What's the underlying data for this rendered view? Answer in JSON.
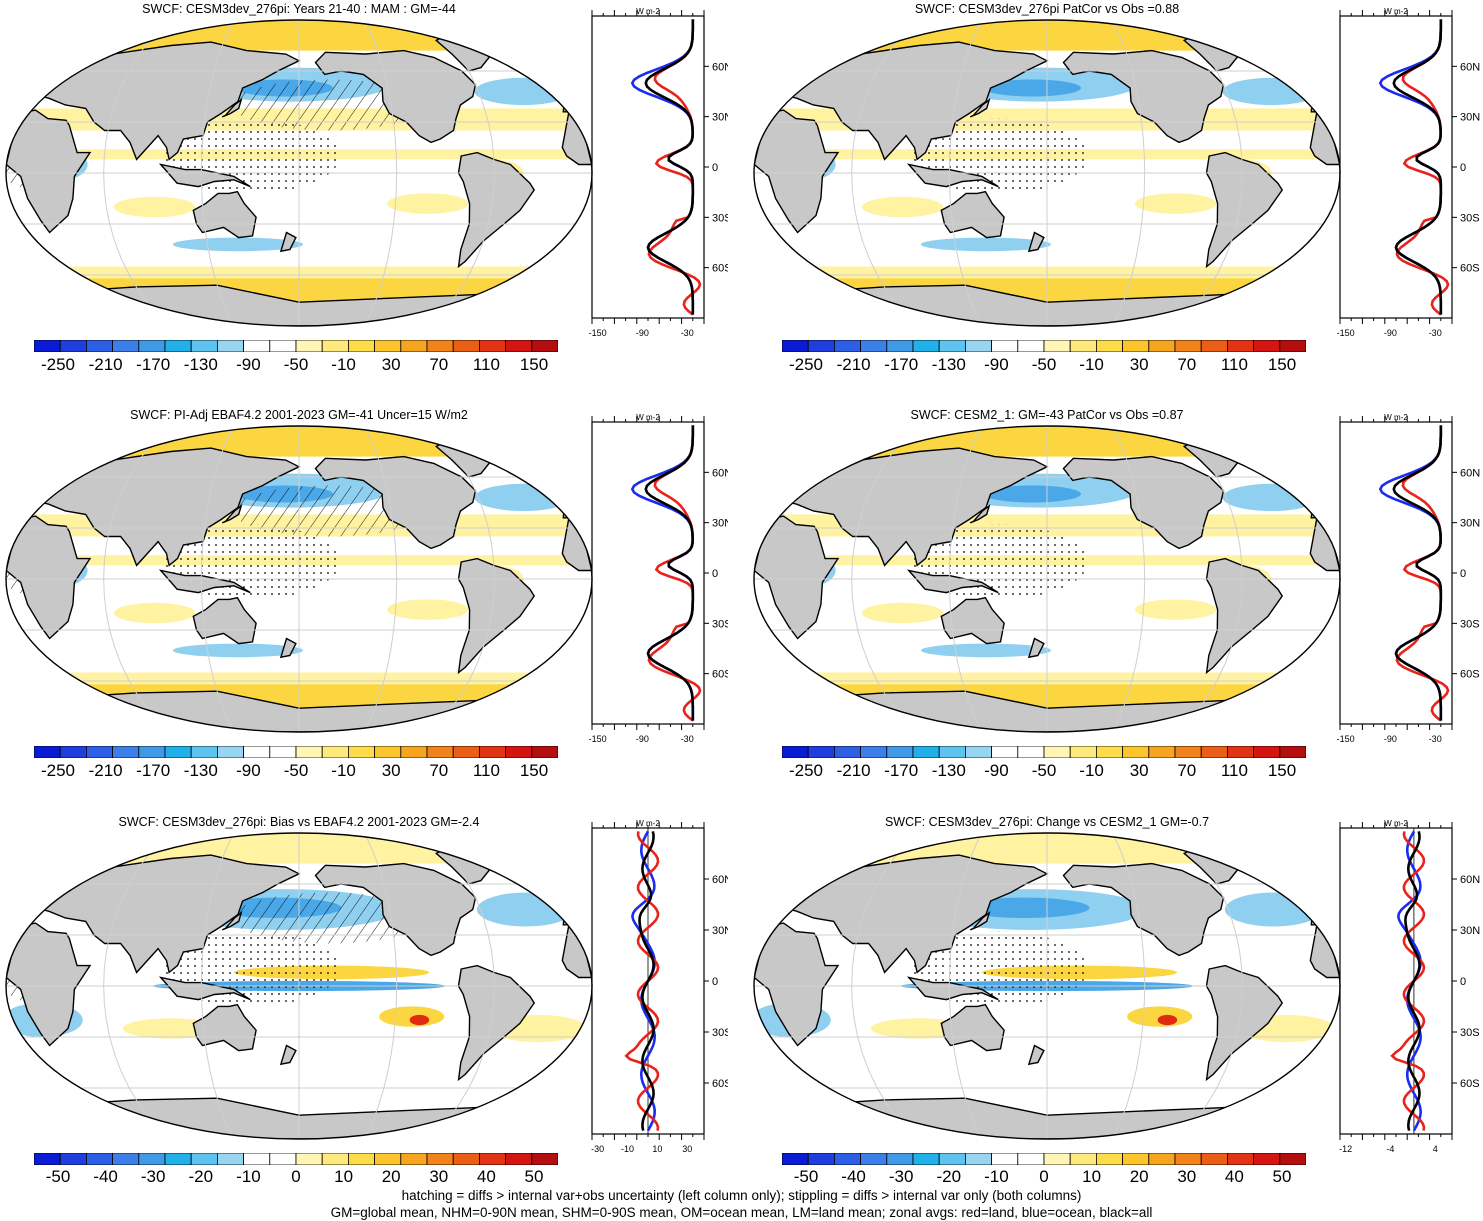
{
  "colors": {
    "land": "#c8c8c8",
    "ocean_white": "#ffffff",
    "neg_light": "#8fd0f0",
    "neg_mid": "#4aa8e8",
    "neg_dark": "#2a6fe0",
    "pos_light": "#fff2a0",
    "pos_mid": "#fbd640",
    "pos_orange": "#f39a1c",
    "pos_red": "#e02a10",
    "line_land": "#e8231c",
    "line_ocean": "#1a2cf0",
    "line_all": "#000000"
  },
  "colorbar_colors": [
    "#0a1bd6",
    "#1f3ee0",
    "#2d5ee6",
    "#3c7eea",
    "#3f9be8",
    "#22b0ea",
    "#5ec3ee",
    "#97d5f0",
    "#ffffff",
    "#ffffff",
    "#fff6b5",
    "#fee97c",
    "#fddc4a",
    "#fbc52b",
    "#f7a41f",
    "#f1831a",
    "#ea5e16",
    "#e23414",
    "#d41512",
    "#b50e0e"
  ],
  "panels": [
    {
      "id": "p1",
      "title": "SWCF: CESM3dev_276pi: Years 21-40 : MAM : GM=-44",
      "colorbar_labels": [
        "-250",
        "-210",
        "-170",
        "-130",
        "-90",
        "-50",
        "-10",
        "30",
        "70",
        "110",
        "150"
      ],
      "zonal_xticks": [
        "-150",
        "-90",
        "-30"
      ],
      "zonal_lat_labels": [
        "60N",
        "30N",
        "0",
        "30S",
        "60S"
      ],
      "zonal_units": "W m-2",
      "style": "mean"
    },
    {
      "id": "p2",
      "title": "SWCF: CESM3dev_276pi PatCor vs Obs =0.88",
      "colorbar_labels": [
        "-250",
        "-210",
        "-170",
        "-130",
        "-90",
        "-50",
        "-10",
        "30",
        "70",
        "110",
        "150"
      ],
      "zonal_xticks": [
        "-150",
        "-90",
        "-30"
      ],
      "zonal_lat_labels": [
        "60N",
        "30N",
        "0",
        "30S",
        "60S"
      ],
      "zonal_units": "W m-2",
      "style": "mean"
    },
    {
      "id": "p3",
      "title": "SWCF: PI-Adj EBAF4.2 2001-2023 GM=-41 Uncer=15 W/m2",
      "colorbar_labels": [
        "-250",
        "-210",
        "-170",
        "-130",
        "-90",
        "-50",
        "-10",
        "30",
        "70",
        "110",
        "150"
      ],
      "zonal_xticks": [
        "-150",
        "-90",
        "-30"
      ],
      "zonal_lat_labels": [
        "60N",
        "30N",
        "0",
        "30S",
        "60S"
      ],
      "zonal_units": "W m-2",
      "style": "mean"
    },
    {
      "id": "p4",
      "title": "SWCF: CESM2_1: GM=-43 PatCor vs Obs =0.87",
      "colorbar_labels": [
        "-250",
        "-210",
        "-170",
        "-130",
        "-90",
        "-50",
        "-10",
        "30",
        "70",
        "110",
        "150"
      ],
      "zonal_xticks": [
        "-150",
        "-90",
        "-30"
      ],
      "zonal_lat_labels": [
        "60N",
        "30N",
        "0",
        "30S",
        "60S"
      ],
      "zonal_units": "W m-2",
      "style": "mean"
    },
    {
      "id": "p5",
      "title": "SWCF: CESM3dev_276pi: Bias vs EBAF4.2 2001-2023 GM=-2.4",
      "colorbar_labels": [
        "-50",
        "-40",
        "-30",
        "-20",
        "-10",
        "0",
        "10",
        "20",
        "30",
        "40",
        "50"
      ],
      "zonal_xticks": [
        "-30",
        "-10",
        "10",
        "30"
      ],
      "zonal_lat_labels": [
        "60N",
        "30N",
        "0",
        "30S",
        "60S"
      ],
      "zonal_units": "W m-2",
      "style": "diff"
    },
    {
      "id": "p6",
      "title": "SWCF: CESM3dev_276pi: Change vs CESM2_1 GM=-0.7",
      "colorbar_labels": [
        "-50",
        "-40",
        "-30",
        "-20",
        "-10",
        "0",
        "10",
        "20",
        "30",
        "40",
        "50"
      ],
      "zonal_xticks": [
        "-12",
        "-4",
        "4"
      ],
      "zonal_lat_labels": [
        "60N",
        "30N",
        "0",
        "30S",
        "60S"
      ],
      "zonal_units": "W m-2",
      "style": "diff"
    }
  ],
  "footer": {
    "line1": "hatching = diffs > internal var+obs uncertainty (left column only); stippling = diffs > internal var only (both columns)",
    "line2": "GM=global mean, NHM=0-90N mean, SHM=0-90S mean, OM=ocean mean, LM=land mean; zonal avgs: red=land, blue=ocean, black=all"
  }
}
